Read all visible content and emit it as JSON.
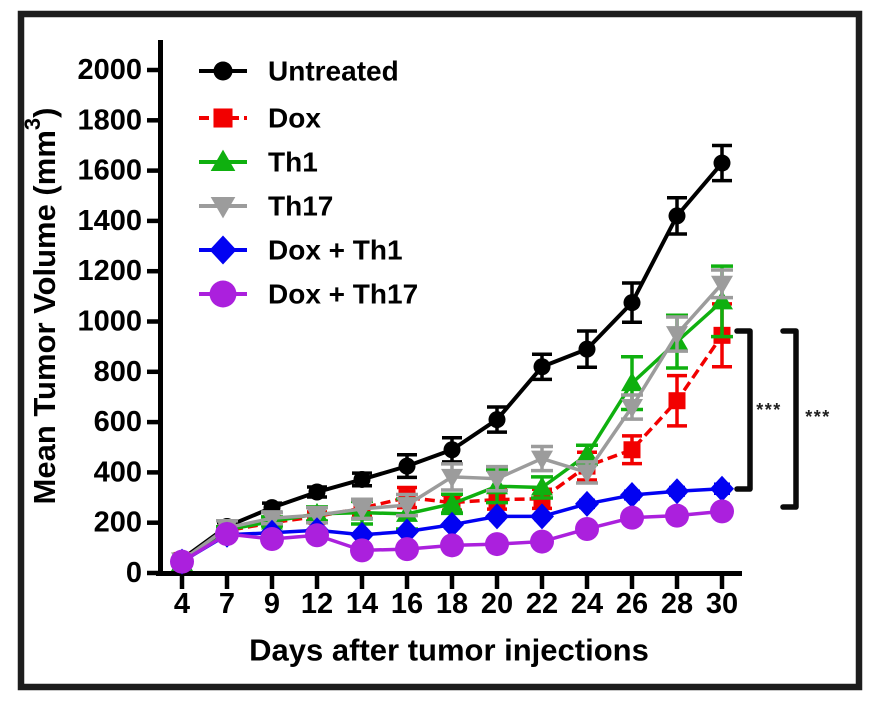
{
  "figure": {
    "background": "#ffffff",
    "border_color": "#1d1d1d"
  },
  "chart_data": {
    "type": "line",
    "title": "",
    "xlabel": "Days after tumor injections",
    "ylabel": "Mean Tumor Volume (mm3)",
    "ylabel_parts": {
      "main": "Mean Tumor Volume (mm",
      "sup": "3",
      "close": ")"
    },
    "x_categories": [
      4,
      7,
      9,
      12,
      14,
      16,
      18,
      20,
      22,
      24,
      26,
      28,
      30
    ],
    "yticks": [
      0,
      200,
      400,
      600,
      800,
      1000,
      1200,
      1400,
      1600,
      1800,
      2000
    ],
    "ylim": [
      0,
      2000
    ],
    "grid": false,
    "legend_position": "top-left-inside",
    "series": [
      {
        "name": "Untreated",
        "color": "#000000",
        "marker": "circle",
        "line_style": "solid",
        "values": [
          55,
          185,
          260,
          322,
          372,
          425,
          490,
          610,
          820,
          890,
          1075,
          1420,
          1630
        ],
        "errors": [
          10,
          15,
          18,
          20,
          25,
          45,
          48,
          50,
          50,
          72,
          78,
          72,
          70
        ]
      },
      {
        "name": "Dox",
        "color": "#f20000",
        "marker": "square",
        "line_style": "dashed",
        "values": [
          50,
          168,
          200,
          225,
          258,
          300,
          280,
          292,
          295,
          425,
          490,
          685,
          945
        ],
        "errors": [
          8,
          12,
          15,
          18,
          32,
          40,
          30,
          38,
          38,
          55,
          55,
          100,
          125
        ]
      },
      {
        "name": "Th1",
        "color": "#0fb00f",
        "marker": "triangle-up",
        "line_style": "solid",
        "values": [
          40,
          172,
          205,
          235,
          240,
          235,
          275,
          345,
          340,
          470,
          755,
          920,
          1080
        ],
        "errors": [
          8,
          12,
          18,
          28,
          45,
          60,
          38,
          65,
          42,
          38,
          105,
          105,
          140
        ]
      },
      {
        "name": "Th17",
        "color": "#9c9c9c",
        "marker": "triangle-down",
        "line_style": "solid",
        "values": [
          50,
          180,
          218,
          230,
          255,
          270,
          382,
          375,
          455,
          400,
          660,
          950,
          1150
        ],
        "errors": [
          8,
          28,
          22,
          30,
          38,
          42,
          52,
          48,
          48,
          42,
          48,
          68,
          55
        ]
      },
      {
        "name": "Dox + Th1",
        "color": "#0202f2",
        "marker": "diamond",
        "line_style": "solid",
        "values": [
          45,
          152,
          160,
          170,
          152,
          165,
          192,
          225,
          225,
          275,
          310,
          325,
          335
        ],
        "errors": [
          6,
          8,
          8,
          10,
          10,
          10,
          12,
          12,
          12,
          14,
          15,
          15,
          18
        ]
      },
      {
        "name": "Dox + Th17",
        "color": "#ab20dd",
        "marker": "circle-large",
        "line_style": "solid",
        "values": [
          45,
          155,
          135,
          150,
          90,
          95,
          110,
          115,
          125,
          175,
          220,
          228,
          245
        ],
        "errors": [
          6,
          10,
          10,
          10,
          12,
          12,
          12,
          12,
          12,
          14,
          15,
          15,
          18
        ]
      }
    ],
    "annotations": {
      "significance": [
        {
          "label": "***",
          "x": 750,
          "y_top": 331,
          "y_bottom": 489,
          "label_x": 769,
          "label_y": 410
        },
        {
          "label": "***",
          "x": 796,
          "y_top": 331,
          "y_bottom": 507,
          "label_x": 818,
          "label_y": 417
        }
      ]
    }
  }
}
